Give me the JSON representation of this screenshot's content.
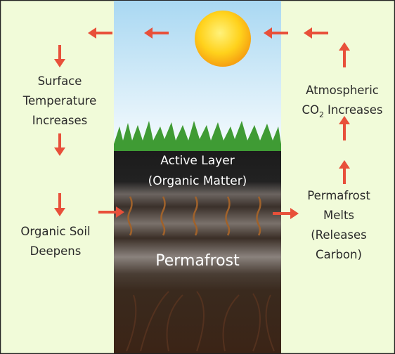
{
  "left_top": [
    "Surface",
    "Temperature",
    "Increases"
  ],
  "left_bottom": [
    "Organic Soil",
    "Deepens"
  ],
  "right_top": {
    "line1": "Atmospheric",
    "line2": [
      "CO",
      "2",
      "Increases"
    ]
  },
  "right_bottom": [
    "Permafrost",
    "Melts",
    "(Releases",
    "Carbon)"
  ],
  "active_layer": [
    "Active Layer",
    "(Organic Matter)"
  ],
  "permafrost": "Permafrost"
}
